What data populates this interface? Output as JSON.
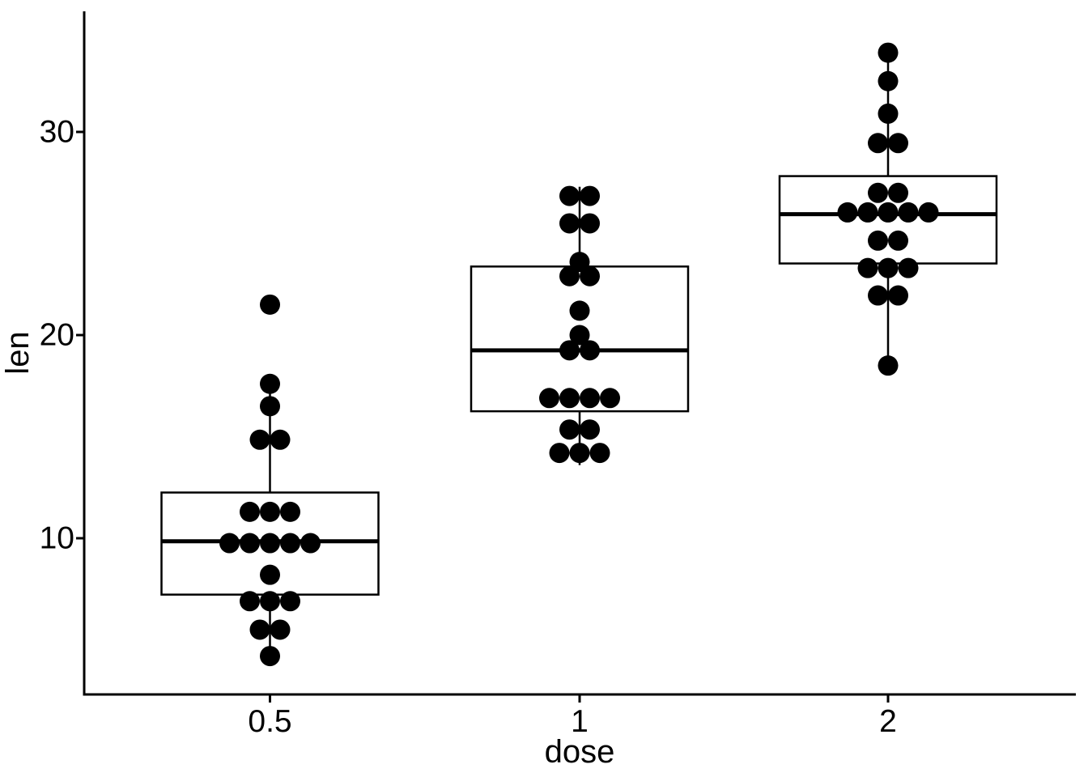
{
  "chart_data": {
    "type": "boxplot+dotplot",
    "title": "",
    "xlabel": "dose",
    "ylabel": "len",
    "x_tick_labels": [
      "0.5",
      "1",
      "2"
    ],
    "y_tick_labels": [
      "30",
      "20",
      "10"
    ],
    "y_tick_values": [
      30,
      20,
      10
    ],
    "ylim": [
      2.3,
      36.1
    ],
    "grid": "off",
    "legend": "none",
    "dot_binwidth": 0.99,
    "groups": [
      {
        "dose": "0.5",
        "values": [
          4.2,
          11.5,
          7.3,
          5.8,
          6.4,
          10.0,
          11.2,
          11.2,
          5.2,
          7.0,
          15.2,
          21.5,
          17.6,
          9.7,
          14.5,
          10.0,
          8.2,
          9.4,
          16.5,
          9.7
        ],
        "box": {
          "lower_whisker": 4.2,
          "q1": 7.225,
          "median": 9.85,
          "q3": 12.25,
          "upper_whisker": 17.6,
          "outliers": [
            21.5
          ]
        },
        "dot_stacks": [
          {
            "y": 4.2,
            "n": 1
          },
          {
            "y": 5.5,
            "n": 2
          },
          {
            "y": 6.9,
            "n": 3
          },
          {
            "y": 8.2,
            "n": 1
          },
          {
            "y": 9.76,
            "n": 5
          },
          {
            "y": 11.3,
            "n": 3
          },
          {
            "y": 14.85,
            "n": 2
          },
          {
            "y": 16.5,
            "n": 1
          },
          {
            "y": 17.6,
            "n": 1
          },
          {
            "y": 21.5,
            "n": 1
          }
        ]
      },
      {
        "dose": "1",
        "values": [
          16.5,
          16.5,
          15.2,
          17.3,
          22.5,
          17.3,
          13.6,
          14.5,
          18.8,
          15.5,
          19.7,
          23.3,
          23.6,
          26.4,
          20.0,
          25.2,
          25.8,
          21.2,
          14.5,
          27.3
        ],
        "box": {
          "lower_whisker": 13.6,
          "q1": 16.25,
          "median": 19.25,
          "q3": 23.375,
          "upper_whisker": 27.3,
          "outliers": []
        },
        "dot_stacks": [
          {
            "y": 14.2,
            "n": 3
          },
          {
            "y": 15.35,
            "n": 2
          },
          {
            "y": 16.9,
            "n": 4
          },
          {
            "y": 19.25,
            "n": 2
          },
          {
            "y": 20.0,
            "n": 1
          },
          {
            "y": 21.2,
            "n": 1
          },
          {
            "y": 22.9,
            "n": 2
          },
          {
            "y": 23.6,
            "n": 1
          },
          {
            "y": 25.5,
            "n": 2
          },
          {
            "y": 26.85,
            "n": 2
          }
        ]
      },
      {
        "dose": "2",
        "values": [
          23.6,
          18.5,
          33.9,
          25.5,
          26.4,
          32.5,
          26.7,
          21.5,
          23.3,
          29.5,
          25.5,
          26.4,
          22.4,
          24.5,
          24.8,
          30.9,
          26.4,
          27.3,
          29.4,
          23.0
        ],
        "box": {
          "lower_whisker": 18.5,
          "q1": 23.525,
          "median": 25.95,
          "q3": 27.825,
          "upper_whisker": 33.9,
          "outliers": []
        },
        "dot_stacks": [
          {
            "y": 18.5,
            "n": 1
          },
          {
            "y": 21.95,
            "n": 2
          },
          {
            "y": 23.3,
            "n": 3
          },
          {
            "y": 24.65,
            "n": 2
          },
          {
            "y": 26.04,
            "n": 5
          },
          {
            "y": 27.0,
            "n": 2
          },
          {
            "y": 29.45,
            "n": 2
          },
          {
            "y": 30.9,
            "n": 1
          },
          {
            "y": 32.5,
            "n": 1
          },
          {
            "y": 33.9,
            "n": 1
          }
        ]
      }
    ],
    "style": {
      "dot_color": "#000000",
      "line_color": "#000000",
      "box_fill": "#ffffff",
      "background": "#ffffff"
    }
  }
}
